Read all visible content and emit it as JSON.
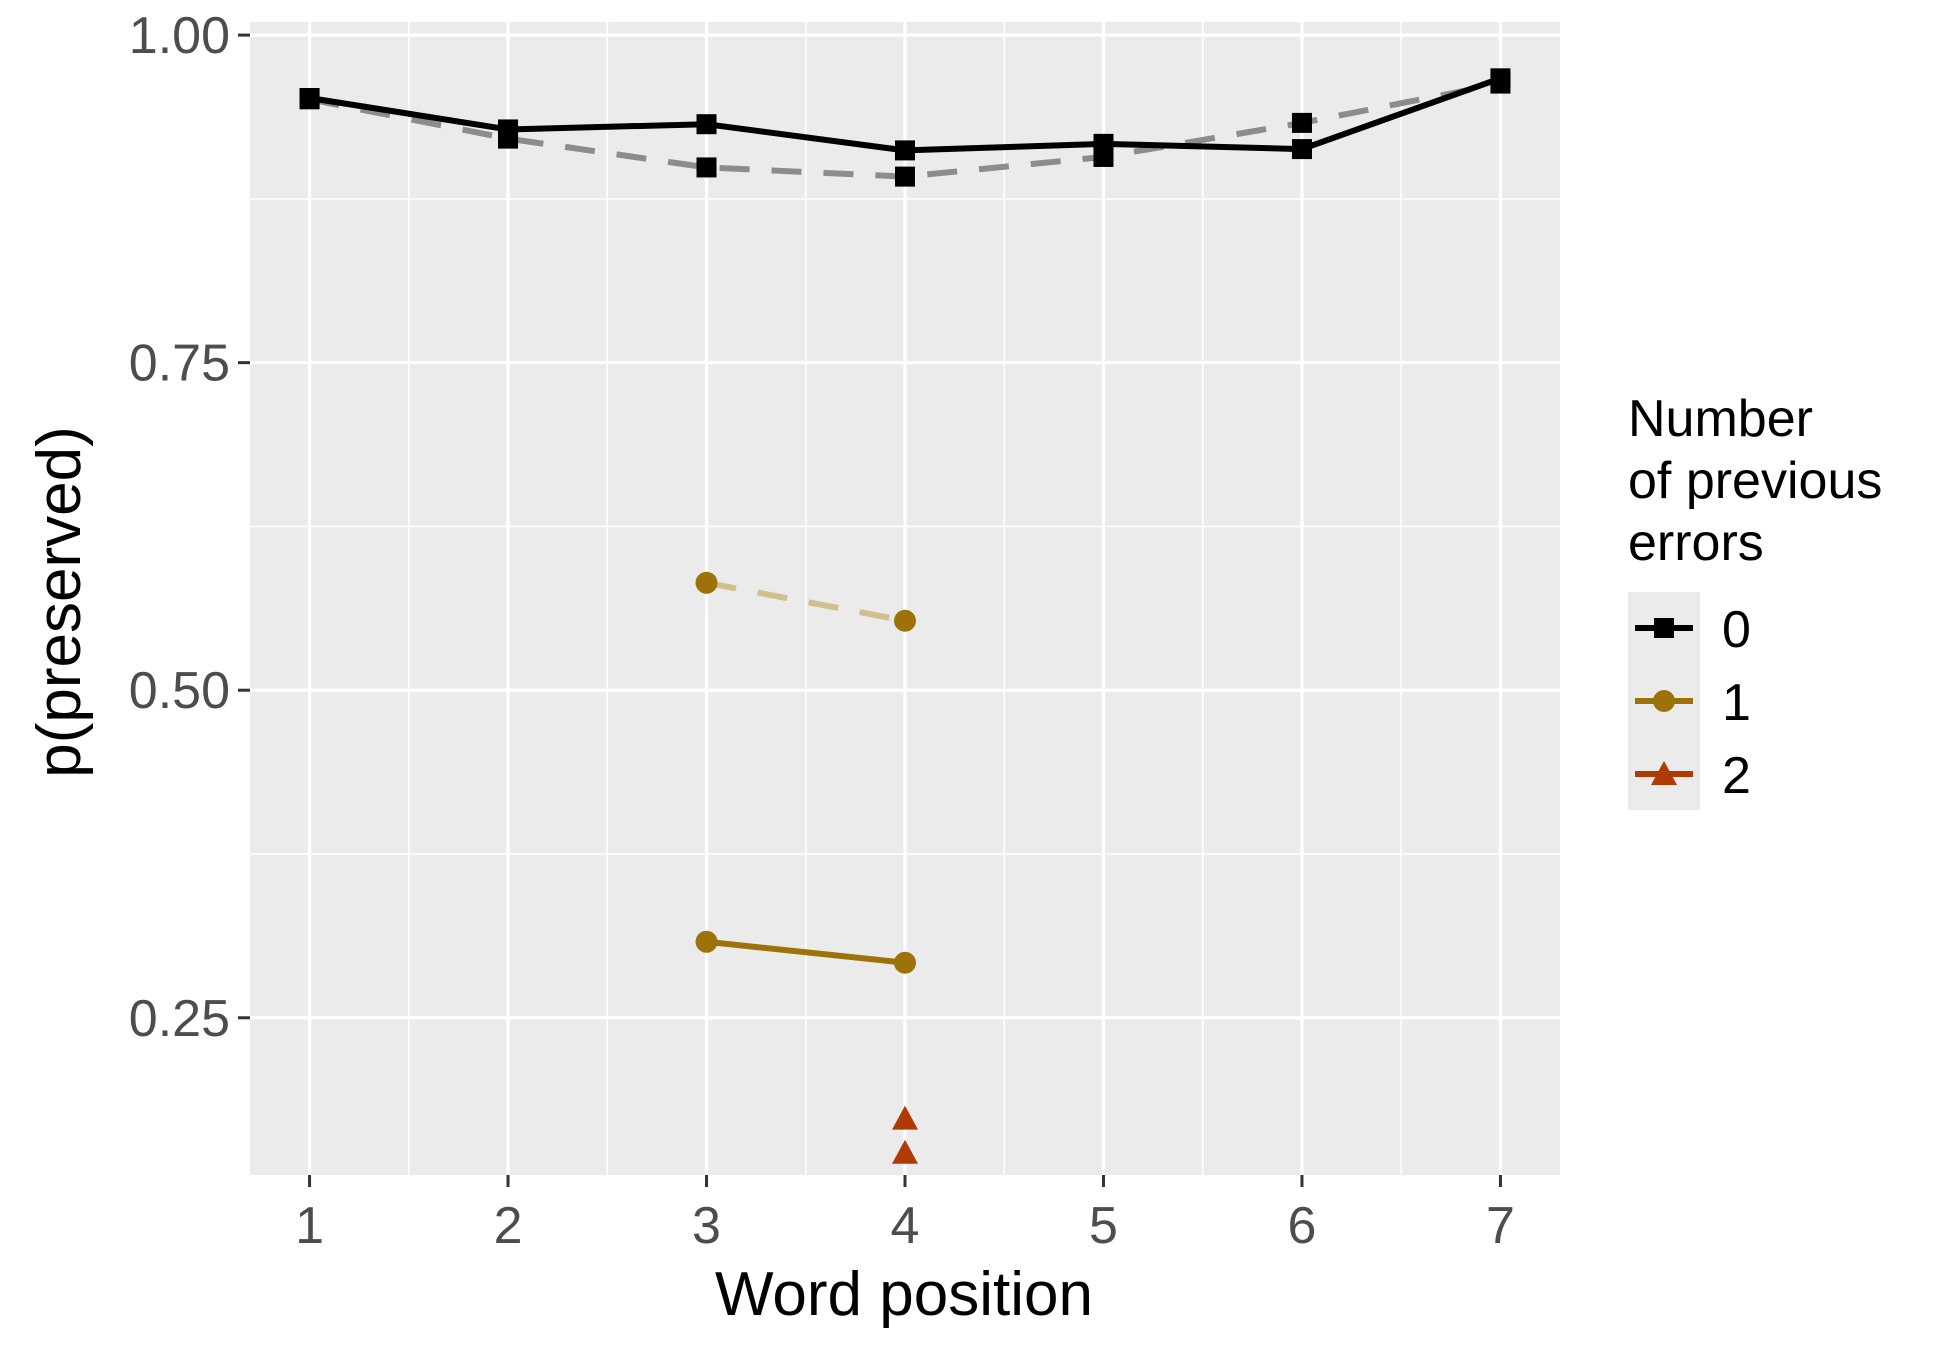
{
  "chart_data": {
    "type": "line",
    "xlabel": "Word position",
    "ylabel": "p(preserved)",
    "x_ticks": [
      1,
      2,
      3,
      4,
      5,
      6,
      7
    ],
    "y_ticks": [
      0.25,
      0.5,
      0.75,
      1.0
    ],
    "y_tick_labels": [
      "0.25",
      "0.50",
      "0.75",
      "1.00"
    ],
    "xlim": [
      0.7,
      7.3
    ],
    "ylim": [
      0.13,
      1.01
    ],
    "grid": true,
    "legend": {
      "position": "right",
      "title_lines": [
        "Number",
        "of previous",
        "errors"
      ],
      "entries": [
        {
          "label": "0",
          "color": "#000000",
          "shape": "square"
        },
        {
          "label": "1",
          "color": "#9c7209",
          "shape": "circle"
        },
        {
          "label": "2",
          "color": "#b03a04",
          "shape": "triangle"
        }
      ]
    },
    "series": [
      {
        "errors": "0",
        "style": "solid",
        "color": "#000000",
        "shape": "square",
        "x": [
          1,
          2,
          3,
          4,
          5,
          6,
          7
        ],
        "y": [
          0.952,
          0.928,
          0.932,
          0.912,
          0.917,
          0.913,
          0.967
        ]
      },
      {
        "errors": "0",
        "style": "dashed",
        "color": "#8c8c8c",
        "line_color": "#8c8c8c",
        "marker_color": "#000000",
        "shape": "square",
        "x": [
          1,
          2,
          3,
          4,
          5,
          6,
          7
        ],
        "y": [
          0.951,
          0.921,
          0.899,
          0.892,
          0.907,
          0.933,
          0.963
        ]
      },
      {
        "errors": "1",
        "style": "solid",
        "color": "#9c7209",
        "shape": "circle",
        "x": [
          3,
          4
        ],
        "y": [
          0.308,
          0.292
        ]
      },
      {
        "errors": "1",
        "style": "dashed",
        "color": "#d2bf8e",
        "line_color": "#d2bf8e",
        "marker_color": "#9c7209",
        "shape": "circle",
        "x": [
          3,
          4
        ],
        "y": [
          0.582,
          0.553
        ]
      },
      {
        "errors": "2",
        "style": "solid",
        "color": "#b03a04",
        "shape": "triangle",
        "x": [
          4
        ],
        "y": [
          0.173
        ]
      },
      {
        "errors": "2",
        "style": "dashed",
        "color": "#b03a04",
        "shape": "triangle",
        "x": [
          4
        ],
        "y": [
          0.147
        ]
      }
    ]
  }
}
